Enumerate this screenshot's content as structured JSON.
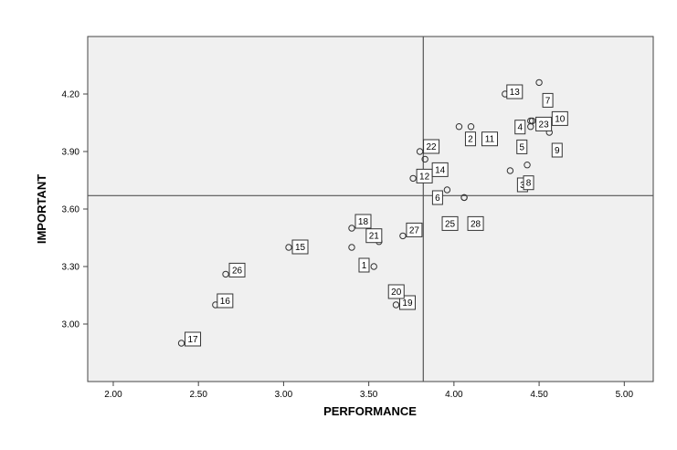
{
  "chart_data": {
    "type": "scatter",
    "title": "",
    "xlabel": "PERFORMANCE",
    "ylabel": "IMPORTANT",
    "xlim": [
      1.85,
      5.17
    ],
    "ylim": [
      2.7,
      4.5
    ],
    "xticks": [
      "2.00",
      "2.50",
      "3.00",
      "3.50",
      "4.00",
      "4.50",
      "5.00"
    ],
    "yticks": [
      "3.00",
      "3.30",
      "3.60",
      "3.90",
      "4.20"
    ],
    "reference_lines": {
      "x": 3.82,
      "y": 3.67
    },
    "grid": false,
    "legend": "none",
    "plot_background": "#f0f0f0",
    "marker": "open-circle",
    "points": [
      {
        "id": "1",
        "x": 3.4,
        "y": 3.4
      },
      {
        "id": "2",
        "x": 4.03,
        "y": 4.03
      },
      {
        "id": "3",
        "x": 4.33,
        "y": 3.8
      },
      {
        "id": "4",
        "x": 4.45,
        "y": 4.03
      },
      {
        "id": "5",
        "x": 4.45,
        "y": 4.06
      },
      {
        "id": "6",
        "x": 3.96,
        "y": 3.7
      },
      {
        "id": "7",
        "x": 4.5,
        "y": 4.26
      },
      {
        "id": "8",
        "x": 4.43,
        "y": 3.83
      },
      {
        "id": "9",
        "x": 4.56,
        "y": 4.0
      },
      {
        "id": "10",
        "x": 4.63,
        "y": 4.06
      },
      {
        "id": "11",
        "x": 4.1,
        "y": 4.03
      },
      {
        "id": "12",
        "x": 3.76,
        "y": 3.76
      },
      {
        "id": "13",
        "x": 4.3,
        "y": 4.2
      },
      {
        "id": "14",
        "x": 3.83,
        "y": 3.86
      },
      {
        "id": "15",
        "x": 3.03,
        "y": 3.4
      },
      {
        "id": "16",
        "x": 2.6,
        "y": 3.1
      },
      {
        "id": "17",
        "x": 2.4,
        "y": 2.9
      },
      {
        "id": "18",
        "x": 3.4,
        "y": 3.5
      },
      {
        "id": "19",
        "x": 3.66,
        "y": 3.1
      },
      {
        "id": "20",
        "x": 3.53,
        "y": 3.3
      },
      {
        "id": "21",
        "x": 3.56,
        "y": 3.43
      },
      {
        "id": "22",
        "x": 3.8,
        "y": 3.9
      },
      {
        "id": "23",
        "x": 4.46,
        "y": 4.06
      },
      {
        "id": "25",
        "x": 4.06,
        "y": 3.66
      },
      {
        "id": "26",
        "x": 2.66,
        "y": 3.26
      },
      {
        "id": "27",
        "x": 3.7,
        "y": 3.46
      },
      {
        "id": "28",
        "x": 4.06,
        "y": 3.66
      }
    ]
  }
}
